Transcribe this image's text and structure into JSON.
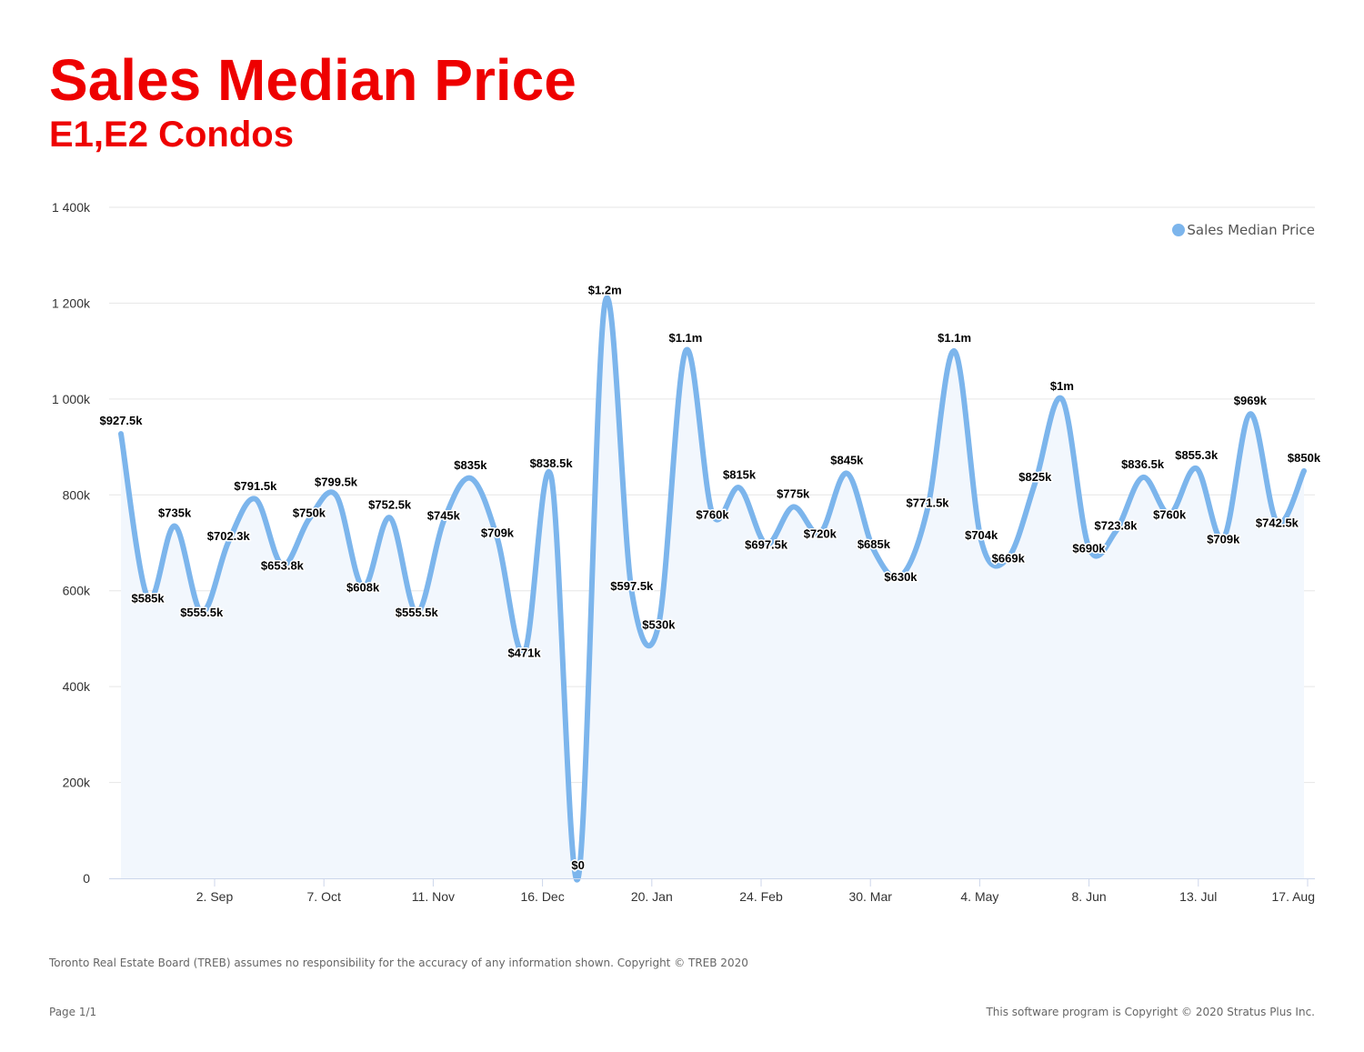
{
  "header": {
    "title": "Sales Median Price",
    "subtitle": "E1,E2 Condos"
  },
  "footer": {
    "disclaimer": "Toronto Real Estate Board (TREB) assumes no responsibility for the accuracy of any information shown. Copyright © TREB 2020",
    "page": "Page 1/1",
    "copyright": "This software program is Copyright © 2020 Stratus Plus Inc."
  },
  "chart_data": {
    "type": "area",
    "title": "",
    "xlabel": "",
    "ylabel": "",
    "ylim": [
      0,
      1400000
    ],
    "yticks": [
      0,
      200000,
      400000,
      600000,
      800000,
      1000000,
      1200000,
      1400000
    ],
    "ytick_labels": [
      "0",
      "200k",
      "400k",
      "600k",
      "800k",
      "1 000k",
      "1 200k",
      "1 400k"
    ],
    "xtick_labels": [
      "2. Sep",
      "7. Oct",
      "11. Nov",
      "16. Dec",
      "20. Jan",
      "24. Feb",
      "30. Mar",
      "4. May",
      "8. Jun",
      "13. Jul",
      "17. Aug"
    ],
    "legend": {
      "position": "top-right",
      "show": true
    },
    "grid": true,
    "colors": {
      "line": "#7cb5ec",
      "area": "#f2f7fd",
      "grid": "#e6e6e6",
      "axis": "#ccd6eb",
      "label": "#000000",
      "tick": "#333333"
    },
    "series": [
      {
        "name": "Sales Median Price",
        "values": [
          927500,
          585000,
          735000,
          555500,
          702300,
          791500,
          653800,
          750000,
          799500,
          608000,
          752500,
          555500,
          745000,
          835000,
          709000,
          471000,
          838500,
          0,
          1200000,
          597500,
          530000,
          1100000,
          760000,
          815000,
          697500,
          775000,
          720000,
          845000,
          685000,
          630000,
          771500,
          1100000,
          704000,
          669000,
          825000,
          1000000,
          690000,
          723800,
          836500,
          760000,
          855300,
          709000,
          969000,
          742500,
          850000
        ],
        "labels": [
          "$927.5k",
          "$585k",
          "$735k",
          "$555.5k",
          "$702.3k",
          "$791.5k",
          "$653.8k",
          "$750k",
          "$799.5k",
          "$608k",
          "$752.5k",
          "$555.5k",
          "$745k",
          "$835k",
          "$709k",
          "$471k",
          "$838.5k",
          "$0",
          "$1.2m",
          "$597.5k",
          "$530k",
          "$1.1m",
          "$760k",
          "$815k",
          "$697.5k",
          "$775k",
          "$720k",
          "$845k",
          "$685k",
          "$630k",
          "$771.5k",
          "$1.1m",
          "$704k",
          "$669k",
          "$825k",
          "$1m",
          "$690k",
          "$723.8k",
          "$836.5k",
          "$760k",
          "$855.3k",
          "$709k",
          "$969k",
          "$742.5k",
          "$850k"
        ]
      }
    ]
  }
}
